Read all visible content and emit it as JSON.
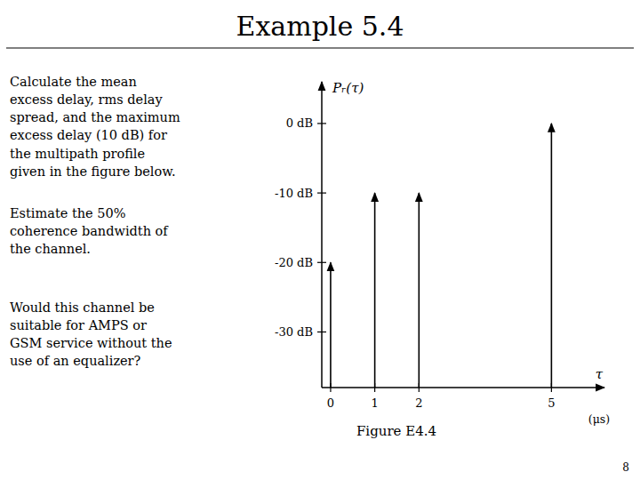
{
  "chart_data": {
    "type": "stem",
    "title": "Example 5.4",
    "text_blocks": [
      "Calculate the mean\nexcess delay, rms delay\nspread, and the maximum\nexcess delay (10 dB) for\nthe multipath profile\ngiven in the figure below.",
      "Estimate the 50%\ncoherence bandwidth of\nthe channel.",
      "Would this channel be\nsuitable for AMPS or\nGSM service without the\nuse of an equalizer?"
    ],
    "caption": "Figure E4.4",
    "page_number": "8",
    "y_label": "Pᵣ(τ)",
    "x_label": "τ",
    "x_units": "(μs)",
    "x": [
      0,
      1,
      2,
      5
    ],
    "values": [
      -20,
      -10,
      -10,
      0
    ],
    "color": "#000000",
    "xlim": [
      -0.2,
      6.2
    ],
    "ylim": [
      -38,
      6
    ],
    "xticks": [
      0,
      1,
      2,
      5
    ],
    "yticks": [
      {
        "value": 0,
        "label": "0 dB"
      },
      {
        "value": -10,
        "label": "-10 dB"
      },
      {
        "value": -20,
        "label": "-20 dB"
      },
      {
        "value": -30,
        "label": "-30 dB"
      }
    ],
    "grid": false
  }
}
